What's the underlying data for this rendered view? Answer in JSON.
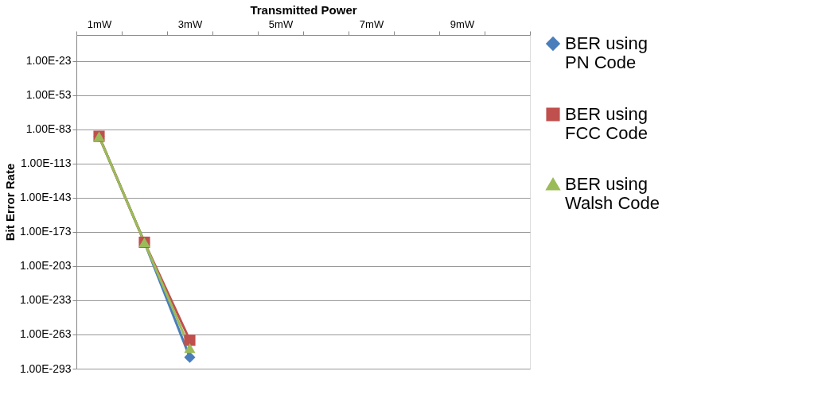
{
  "chart_data": {
    "type": "line",
    "xlabel": "Transmitted Power",
    "ylabel": "Bit Error Rate",
    "categories": [
      "1mW",
      null,
      "3mW",
      null,
      "5mW",
      null,
      "7mW",
      null,
      "9mW",
      null
    ],
    "series": [
      {
        "name": "BER using PN Code",
        "color": "#4a7ebb",
        "marker": "diamond",
        "values": [
          1e-89,
          1e-182,
          1e-283,
          null,
          null,
          null,
          null,
          null,
          null,
          null
        ]
      },
      {
        "name": "BER using FCC Code",
        "color": "#c0504d",
        "marker": "square",
        "values": [
          1e-89,
          1e-182,
          1e-268,
          null,
          null,
          null,
          null,
          null,
          null,
          null
        ]
      },
      {
        "name": "BER using Walsh Code",
        "color": "#9bbb59",
        "marker": "triangle",
        "values": [
          1e-89,
          1e-182,
          1e-275,
          null,
          null,
          null,
          null,
          null,
          null,
          null
        ]
      }
    ],
    "log": "y",
    "ylim": [
      1e-293,
      1
    ],
    "yticks": [
      {
        "value": 1e-293,
        "label": "1.00E-293"
      },
      {
        "value": 1e-263,
        "label": "1.00E-263"
      },
      {
        "value": 1e-233,
        "label": "1.00E-233"
      },
      {
        "value": 1e-203,
        "label": "1.00E-203"
      },
      {
        "value": 1e-173,
        "label": "1.00E-173"
      },
      {
        "value": 1e-143,
        "label": "1.00E-143"
      },
      {
        "value": 1e-113,
        "label": "1.00E-113"
      },
      {
        "value": 1e-83,
        "label": "1.00E-83"
      },
      {
        "value": 1e-53,
        "label": "1.00E-53"
      },
      {
        "value": 1e-23,
        "label": "1.00E-23"
      }
    ],
    "grid": "y",
    "legend": "right"
  }
}
